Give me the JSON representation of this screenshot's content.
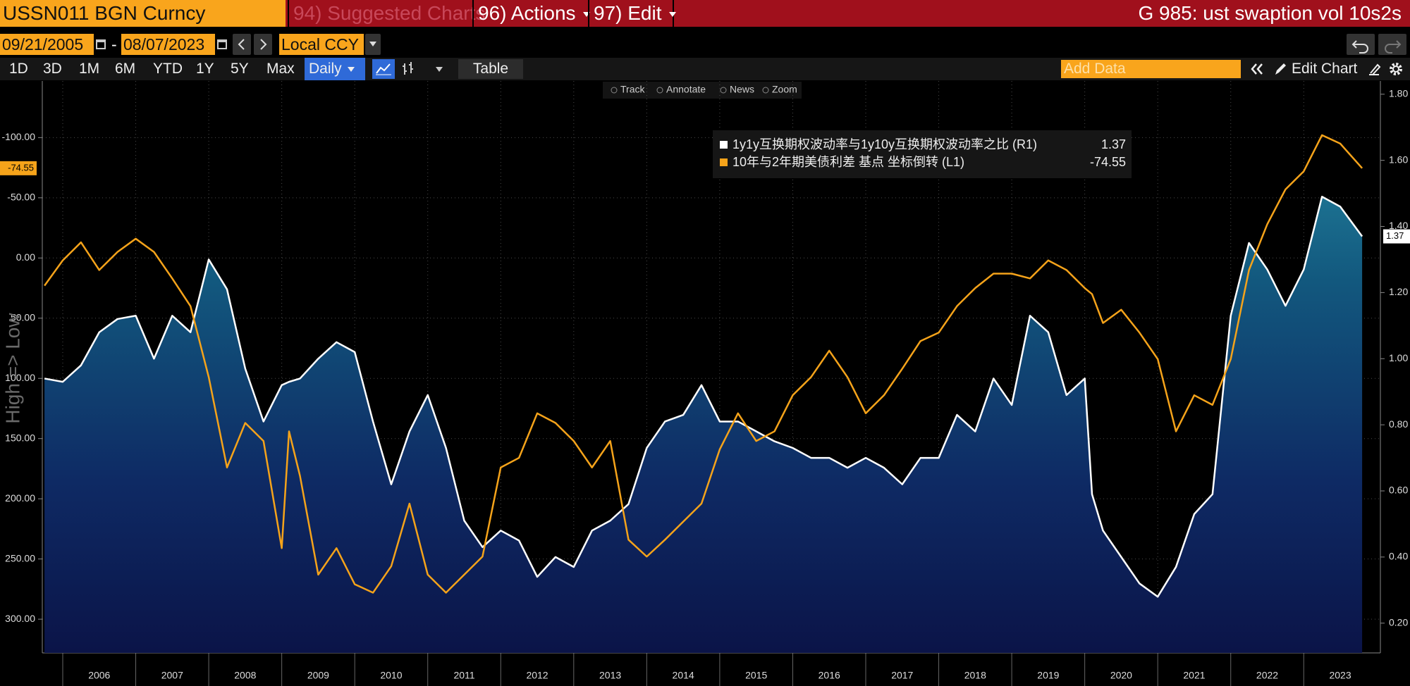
{
  "header": {
    "security": "USSN011 BGN Curncy",
    "menu": [
      "94) Suggested Charts",
      "96) Actions",
      "97) Edit"
    ],
    "title": "G 985: ust swaption vol 10s2s"
  },
  "controls": {
    "start_date": "09/21/2005",
    "separator": "-",
    "end_date": "08/07/2023",
    "currency": "Local CCY",
    "periods": [
      "1D",
      "3D",
      "1M",
      "6M",
      "YTD",
      "1Y",
      "5Y",
      "Max"
    ],
    "frequency": "Daily",
    "table": "Table",
    "add_data": "Add Data",
    "edit_chart": "Edit Chart"
  },
  "chart_tools": [
    "Track",
    "Annotate",
    "News",
    "Zoom"
  ],
  "chart_data": {
    "type": "line",
    "y_label": "High => Low",
    "grid": true,
    "legend": "top",
    "x": [
      2005.75,
      2006,
      2006.25,
      2006.5,
      2006.75,
      2007,
      2007.25,
      2007.5,
      2007.75,
      2008,
      2008.25,
      2008.5,
      2008.75,
      2009,
      2009.1,
      2009.25,
      2009.5,
      2009.75,
      2010,
      2010.25,
      2010.5,
      2010.75,
      2011,
      2011.25,
      2011.5,
      2011.75,
      2012,
      2012.25,
      2012.5,
      2012.75,
      2013,
      2013.25,
      2013.5,
      2013.75,
      2014,
      2014.25,
      2014.5,
      2014.75,
      2015,
      2015.25,
      2015.5,
      2015.75,
      2016,
      2016.25,
      2016.5,
      2016.75,
      2017,
      2017.25,
      2017.5,
      2017.75,
      2018,
      2018.25,
      2018.5,
      2018.75,
      2019,
      2019.25,
      2019.5,
      2019.75,
      2020,
      2020.1,
      2020.25,
      2020.5,
      2020.75,
      2021,
      2021.25,
      2021.5,
      2021.75,
      2022,
      2022.25,
      2022.5,
      2022.75,
      2023,
      2023.25,
      2023.5,
      2023.8
    ],
    "xlim": [
      2005.72,
      2024.05
    ],
    "xticks": [
      2006,
      2007,
      2008,
      2009,
      2010,
      2011,
      2012,
      2013,
      2014,
      2015,
      2016,
      2017,
      2018,
      2019,
      2020,
      2021,
      2022,
      2023
    ],
    "ylim": [
      328,
      -147
    ],
    "yticks": [
      {
        "value": -100,
        "label": "-100.00"
      },
      {
        "value": -50,
        "label": "-50.00"
      },
      {
        "value": 0,
        "label": "0.00"
      },
      {
        "value": 50,
        "label": "50.00"
      },
      {
        "value": 100,
        "label": "100.00"
      },
      {
        "value": 150,
        "label": "150.00"
      },
      {
        "value": 200,
        "label": "200.00"
      },
      {
        "value": 250,
        "label": "250.00"
      },
      {
        "value": 300,
        "label": "300.00"
      }
    ],
    "y2lim": [
      0.11,
      1.84
    ],
    "y2ticks": [
      {
        "value": 0.2,
        "label": "0.20"
      },
      {
        "value": 0.4,
        "label": "0.40"
      },
      {
        "value": 0.6,
        "label": "0.60"
      },
      {
        "value": 0.8,
        "label": "0.80"
      },
      {
        "value": 1,
        "label": "1.00"
      },
      {
        "value": 1.2,
        "label": "1.20"
      },
      {
        "value": 1.4,
        "label": "1.40"
      },
      {
        "value": 1.6,
        "label": "1.60"
      },
      {
        "value": 1.8,
        "label": "1.80"
      }
    ],
    "series": [
      {
        "name": "1y1y互换期权波动率与1y10y互换期权波动率之比 (R1)",
        "color": "#ffffff",
        "axis": "y2",
        "area": true,
        "values": [
          0.94,
          0.93,
          0.98,
          1.08,
          1.12,
          1.13,
          1.0,
          1.13,
          1.08,
          1.3,
          1.21,
          0.97,
          0.81,
          0.92,
          0.93,
          0.94,
          1.0,
          1.05,
          1.02,
          0.81,
          0.62,
          0.78,
          0.89,
          0.73,
          0.51,
          0.43,
          0.48,
          0.45,
          0.34,
          0.4,
          0.37,
          0.48,
          0.51,
          0.56,
          0.73,
          0.81,
          0.83,
          0.92,
          0.81,
          0.81,
          0.78,
          0.75,
          0.73,
          0.7,
          0.7,
          0.67,
          0.7,
          0.67,
          0.62,
          0.7,
          0.7,
          0.83,
          0.78,
          0.94,
          0.86,
          1.13,
          1.08,
          0.89,
          0.94,
          0.59,
          0.48,
          0.4,
          0.32,
          0.28,
          0.37,
          0.53,
          0.59,
          1.13,
          1.35,
          1.27,
          1.16,
          1.27,
          1.49,
          1.46,
          1.37
        ]
      },
      {
        "name": "10年与2年期美债利差 基点 坐标倒转 (L1)",
        "color": "#f5a31a",
        "values": [
          23,
          2,
          -13,
          10,
          -5,
          -16,
          -5,
          17,
          40,
          99,
          174,
          137,
          152,
          241,
          144,
          181,
          263,
          241,
          271,
          278,
          256,
          204,
          263,
          278,
          263,
          248,
          174,
          166,
          129,
          137,
          152,
          174,
          152,
          234,
          248,
          234,
          219,
          204,
          159,
          129,
          152,
          144,
          114,
          99,
          77,
          99,
          129,
          114,
          92,
          69,
          62,
          40,
          25,
          13,
          13,
          17,
          2,
          10,
          25,
          30,
          54,
          43,
          62,
          84,
          144,
          114,
          122,
          84,
          10,
          -28,
          -57,
          -72,
          -102,
          -95,
          -74.55
        ]
      }
    ]
  }
}
